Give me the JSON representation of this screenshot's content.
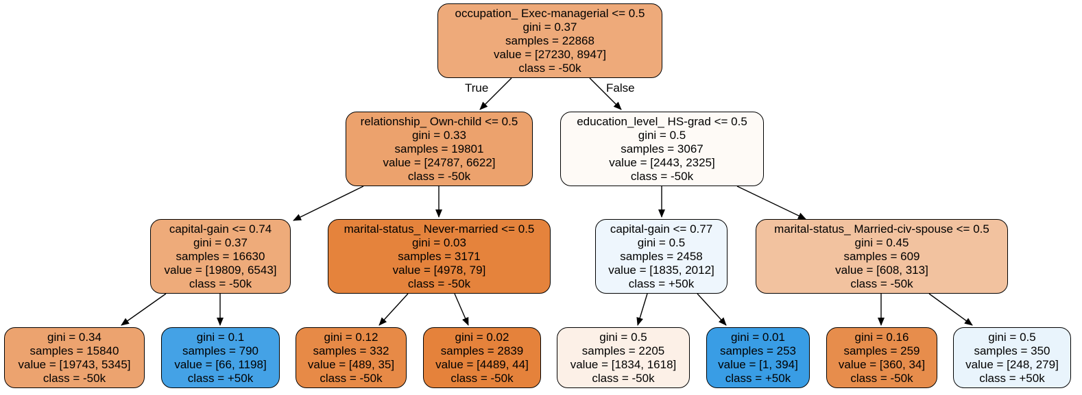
{
  "colors": {
    "edge": "#000000",
    "border": "#000000"
  },
  "edge_labels": {
    "true": "True",
    "false": "False"
  },
  "nodes": {
    "root": {
      "lines": [
        "occupation_ Exec-managerial <= 0.5",
        "gini = 0.37",
        "samples = 22868",
        "value = [27230, 8947]",
        "class = -50k"
      ],
      "fill": "#eeaa7a"
    },
    "l": {
      "lines": [
        "relationship_ Own-child <= 0.5",
        "gini = 0.33",
        "samples = 19801",
        "value = [24787, 6622]",
        "class = -50k"
      ],
      "fill": "#eca26d"
    },
    "r": {
      "lines": [
        "education_level_ HS-grad <= 0.5",
        "gini = 0.5",
        "samples = 3067",
        "value = [2443, 2325]",
        "class = -50k"
      ],
      "fill": "#fefaf6"
    },
    "ll": {
      "lines": [
        "capital-gain <= 0.74",
        "gini = 0.37",
        "samples = 16630",
        "value = [19809, 6543]",
        "class = -50k"
      ],
      "fill": "#eeab7a"
    },
    "lr": {
      "lines": [
        "marital-status_ Never-married <= 0.5",
        "gini = 0.03",
        "samples = 3171",
        "value = [4978, 79]",
        "class = -50k"
      ],
      "fill": "#e5833c"
    },
    "rl": {
      "lines": [
        "capital-gain <= 0.77",
        "gini = 0.5",
        "samples = 2458",
        "value = [1835, 2012]",
        "class = +50k"
      ],
      "fill": "#eef6fd"
    },
    "rr": {
      "lines": [
        "marital-status_ Married-civ-spouse <= 0.5",
        "gini = 0.45",
        "samples = 609",
        "value = [608, 313]",
        "class = -50k"
      ],
      "fill": "#f2c29f"
    },
    "lll": {
      "lines": [
        "gini = 0.34",
        "samples = 15840",
        "value = [19743, 5345]",
        "class = -50k"
      ],
      "fill": "#eca36f"
    },
    "llr": {
      "lines": [
        "gini = 0.1",
        "samples = 790",
        "value = [66, 1198]",
        "class = +50k"
      ],
      "fill": "#44a2e6"
    },
    "lrl": {
      "lines": [
        "gini = 0.12",
        "samples = 332",
        "value = [489, 35]",
        "class = -50k"
      ],
      "fill": "#e78a47"
    },
    "lrr": {
      "lines": [
        "gini = 0.02",
        "samples = 2839",
        "value = [4489, 44]",
        "class = -50k"
      ],
      "fill": "#e5823b"
    },
    "rll": {
      "lines": [
        "gini = 0.5",
        "samples = 2205",
        "value = [1834, 1618]",
        "class = -50k"
      ],
      "fill": "#fcf0e7"
    },
    "rlr": {
      "lines": [
        "gini = 0.01",
        "samples = 253",
        "value = [1, 394]",
        "class = +50k"
      ],
      "fill": "#399de5"
    },
    "rrl": {
      "lines": [
        "gini = 0.16",
        "samples = 259",
        "value = [360, 34]",
        "class = -50k"
      ],
      "fill": "#e78d4c"
    },
    "rrr": {
      "lines": [
        "gini = 0.5",
        "samples = 350",
        "value = [248, 279]",
        "class = +50k"
      ],
      "fill": "#e9f4fc"
    }
  }
}
